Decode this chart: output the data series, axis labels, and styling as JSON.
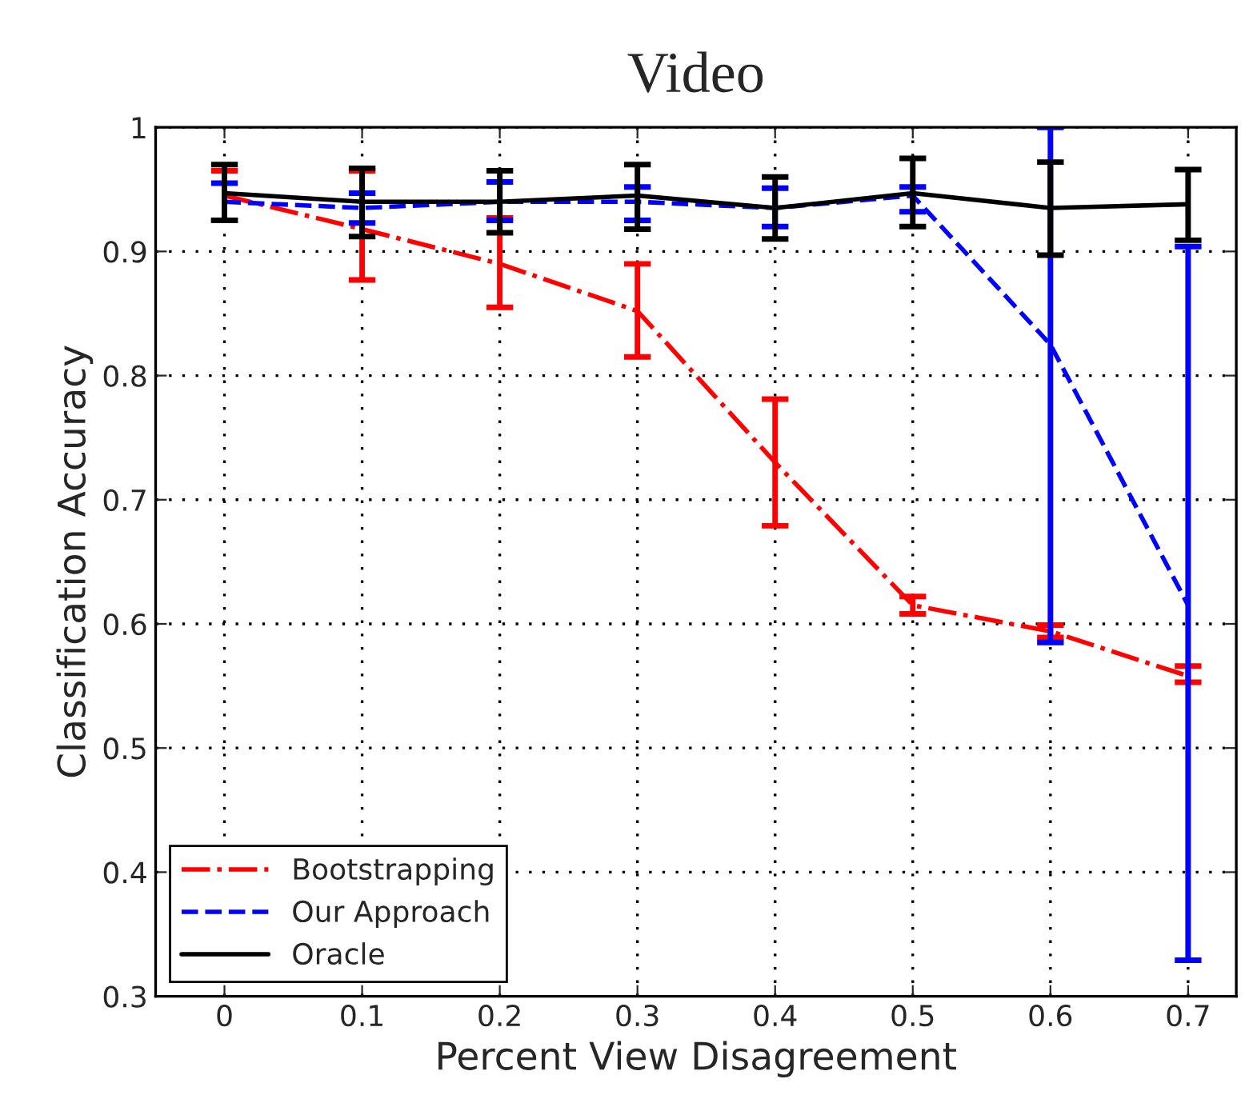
{
  "chart_data": {
    "type": "line",
    "title": "Video",
    "xlabel": "Percent View Disagreement",
    "ylabel": "Classification Accuracy",
    "x": [
      0,
      0.1,
      0.2,
      0.3,
      0.4,
      0.5,
      0.6,
      0.7
    ],
    "series": [
      {
        "name": "Bootstrapping",
        "color": "#ff0000",
        "line_style": "dashdot",
        "values": [
          0.945,
          0.918,
          0.89,
          0.852,
          0.73,
          0.615,
          0.594,
          0.558
        ],
        "errors": [
          [
            0.925,
            0.965
          ],
          [
            0.877,
            0.965
          ],
          [
            0.855,
            0.927
          ],
          [
            0.815,
            0.89
          ],
          [
            0.679,
            0.781
          ],
          [
            0.608,
            0.622
          ],
          [
            0.589,
            0.599
          ],
          [
            0.553,
            0.566
          ]
        ]
      },
      {
        "name": "Our Approach",
        "color": "#0000ff",
        "line_style": "dashed",
        "values": [
          0.94,
          0.935,
          0.94,
          0.94,
          0.935,
          0.945,
          0.825,
          0.615
        ],
        "errors": [
          [
            0.925,
            0.955
          ],
          [
            0.923,
            0.947
          ],
          [
            0.925,
            0.956
          ],
          [
            0.925,
            0.952
          ],
          [
            0.92,
            0.951
          ],
          [
            0.932,
            0.952
          ],
          [
            0.585,
            1.0
          ],
          [
            0.329,
            0.904
          ]
        ]
      },
      {
        "name": "Oracle",
        "color": "#000000",
        "line_style": "solid",
        "values": [
          0.947,
          0.94,
          0.94,
          0.945,
          0.935,
          0.947,
          0.935,
          0.938
        ],
        "errors": [
          [
            0.925,
            0.97
          ],
          [
            0.912,
            0.967
          ],
          [
            0.915,
            0.965
          ],
          [
            0.918,
            0.97
          ],
          [
            0.91,
            0.96
          ],
          [
            0.92,
            0.975
          ],
          [
            0.897,
            0.972
          ],
          [
            0.909,
            0.966
          ]
        ]
      }
    ],
    "xlim": [
      -0.05,
      0.735
    ],
    "ylim": [
      0.3,
      1.0
    ],
    "xticks": [
      0,
      0.1,
      0.2,
      0.3,
      0.4,
      0.5,
      0.6,
      0.7
    ],
    "yticks": [
      0.3,
      0.4,
      0.5,
      0.6,
      0.7,
      0.8,
      0.9,
      1
    ],
    "grid": true,
    "legend": "bottom left",
    "marker": "none"
  }
}
